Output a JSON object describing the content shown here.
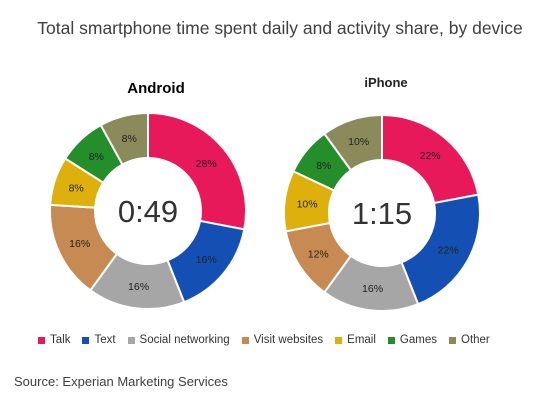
{
  "title": "Total smartphone time spent daily and activity share, by device",
  "source": "Source: Experian Marketing Services",
  "chart_data": {
    "type": "donut",
    "categories": [
      "Talk",
      "Text",
      "Social networking",
      "Visit websites",
      "Email",
      "Games",
      "Other"
    ],
    "colors": [
      "#e8195a",
      "#1450b4",
      "#a6a6a6",
      "#c68a52",
      "#deb00c",
      "#238e2a",
      "#8a8a5a"
    ],
    "charts": [
      {
        "name": "Android",
        "center_label": "0:49",
        "values": [
          28,
          16,
          16,
          16,
          8,
          8,
          8
        ],
        "labels": [
          "28%",
          "16%",
          "16%",
          "16%",
          "8%",
          "8%",
          "8%"
        ]
      },
      {
        "name": "iPhone",
        "center_label": "1:15",
        "values": [
          22,
          22,
          16,
          12,
          10,
          8,
          10
        ],
        "labels": [
          "22%",
          "22%",
          "16%",
          "12%",
          "10%",
          "8%",
          "10%"
        ]
      }
    ]
  }
}
